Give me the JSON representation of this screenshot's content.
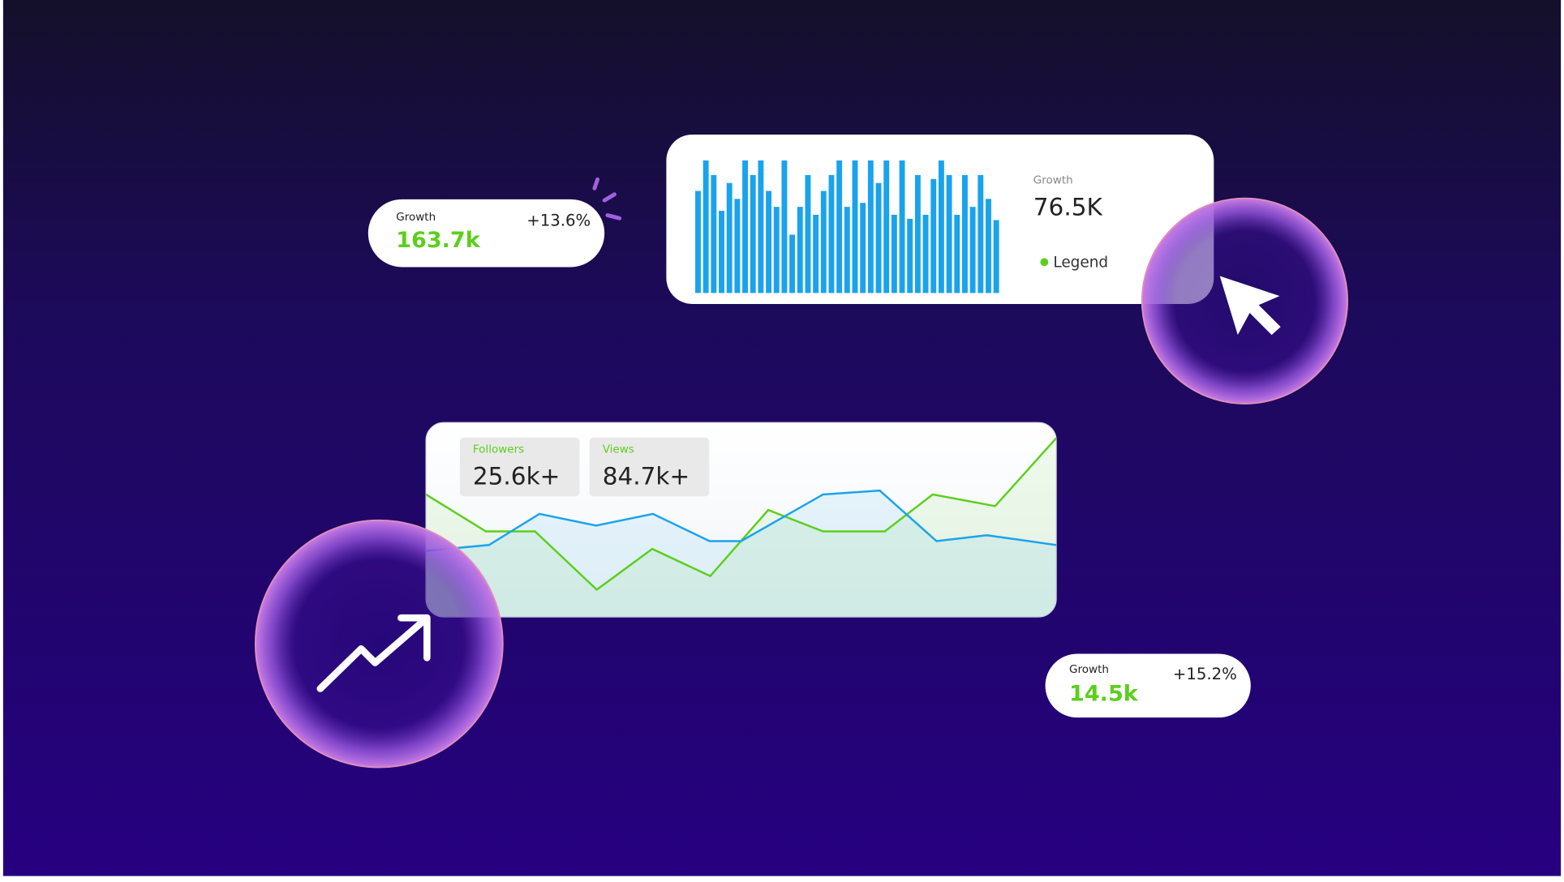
{
  "cards": {
    "growth_top": {
      "label": "Growth",
      "value": "163.7k",
      "change": "+13.6%"
    },
    "bar_panel": {
      "label": "Growth",
      "value": "76.5K",
      "legend": "Legend"
    },
    "stats": [
      {
        "label": "Followers",
        "value": "25.6k+"
      },
      {
        "label": "Views",
        "value": "84.7k+"
      }
    ],
    "growth_bottom": {
      "label": "Growth",
      "value": "14.5k",
      "change": "+15.2%"
    }
  },
  "chart_data": [
    {
      "type": "bar",
      "color": "#1aa3ec",
      "values": [
        77,
        100,
        89,
        62,
        83,
        71,
        100,
        89,
        100,
        77,
        65,
        100,
        44,
        65,
        89,
        59,
        77,
        89,
        100,
        65,
        100,
        68,
        100,
        83,
        100,
        59,
        100,
        56,
        89,
        59,
        86,
        100,
        89,
        59,
        89,
        65,
        89,
        71,
        55
      ]
    },
    {
      "type": "line",
      "series": [
        {
          "color": "#5ccf1c",
          "x": [
            0,
            9.5,
            17.3,
            27.1,
            35.9,
            45.1,
            54.3,
            63,
            72.8,
            80.4,
            90.3,
            100
          ],
          "values": [
            63,
            44,
            44,
            14,
            35,
            21,
            55,
            44,
            44,
            63,
            57,
            92
          ]
        },
        {
          "color": "#1aa3ec",
          "x": [
            0,
            10,
            18,
            27,
            36,
            45,
            50,
            63,
            72,
            81,
            89,
            100
          ],
          "values": [
            34,
            37,
            53,
            47,
            53,
            39,
            39,
            63,
            65,
            39,
            42,
            37
          ]
        }
      ]
    }
  ]
}
